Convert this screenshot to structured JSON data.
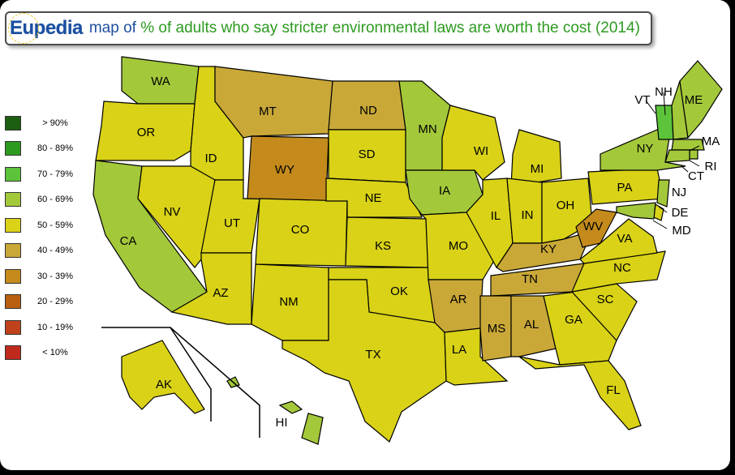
{
  "header": {
    "brand": "Eupedia",
    "title_pre": "map of ",
    "title_em": "% of adults who say stricter environmental laws are worth the cost (2014)"
  },
  "legend": [
    {
      "label": "> 90%",
      "color": "#1c5e10"
    },
    {
      "label": "80 - 89%",
      "color": "#2c9a1f"
    },
    {
      "label": "70 - 79%",
      "color": "#5cc33a"
    },
    {
      "label": "60 - 69%",
      "color": "#a3c83a"
    },
    {
      "label": "50 - 59%",
      "color": "#d9d217"
    },
    {
      "label": "40 - 49%",
      "color": "#c9a838"
    },
    {
      "label": "30 - 39%",
      "color": "#c48b1c"
    },
    {
      "label": "20 - 29%",
      "color": "#b8600f"
    },
    {
      "label": "10 - 19%",
      "color": "#c0421c"
    },
    {
      "label": "< 10%",
      "color": "#c02a1c"
    }
  ],
  "states": [
    {
      "abbr": "WA",
      "bucket": "60 - 69%"
    },
    {
      "abbr": "OR",
      "bucket": "50 - 59%"
    },
    {
      "abbr": "CA",
      "bucket": "60 - 69%"
    },
    {
      "abbr": "ID",
      "bucket": "50 - 59%"
    },
    {
      "abbr": "NV",
      "bucket": "50 - 59%"
    },
    {
      "abbr": "UT",
      "bucket": "50 - 59%"
    },
    {
      "abbr": "AZ",
      "bucket": "50 - 59%"
    },
    {
      "abbr": "MT",
      "bucket": "40 - 49%"
    },
    {
      "abbr": "WY",
      "bucket": "30 - 39%"
    },
    {
      "abbr": "CO",
      "bucket": "50 - 59%"
    },
    {
      "abbr": "NM",
      "bucket": "50 - 59%"
    },
    {
      "abbr": "ND",
      "bucket": "40 - 49%"
    },
    {
      "abbr": "SD",
      "bucket": "50 - 59%"
    },
    {
      "abbr": "NE",
      "bucket": "50 - 59%"
    },
    {
      "abbr": "KS",
      "bucket": "50 - 59%"
    },
    {
      "abbr": "OK",
      "bucket": "50 - 59%"
    },
    {
      "abbr": "TX",
      "bucket": "50 - 59%"
    },
    {
      "abbr": "MN",
      "bucket": "60 - 69%"
    },
    {
      "abbr": "IA",
      "bucket": "60 - 69%"
    },
    {
      "abbr": "MO",
      "bucket": "50 - 59%"
    },
    {
      "abbr": "AR",
      "bucket": "40 - 49%"
    },
    {
      "abbr": "LA",
      "bucket": "50 - 59%"
    },
    {
      "abbr": "WI",
      "bucket": "50 - 59%"
    },
    {
      "abbr": "IL",
      "bucket": "50 - 59%"
    },
    {
      "abbr": "MI",
      "bucket": "50 - 59%"
    },
    {
      "abbr": "IN",
      "bucket": "50 - 59%"
    },
    {
      "abbr": "OH",
      "bucket": "50 - 59%"
    },
    {
      "abbr": "KY",
      "bucket": "40 - 49%"
    },
    {
      "abbr": "TN",
      "bucket": "40 - 49%"
    },
    {
      "abbr": "MS",
      "bucket": "40 - 49%"
    },
    {
      "abbr": "AL",
      "bucket": "40 - 49%"
    },
    {
      "abbr": "GA",
      "bucket": "50 - 59%"
    },
    {
      "abbr": "FL",
      "bucket": "50 - 59%"
    },
    {
      "abbr": "SC",
      "bucket": "50 - 59%"
    },
    {
      "abbr": "NC",
      "bucket": "50 - 59%"
    },
    {
      "abbr": "VA",
      "bucket": "50 - 59%"
    },
    {
      "abbr": "WV",
      "bucket": "30 - 39%"
    },
    {
      "abbr": "PA",
      "bucket": "50 - 59%"
    },
    {
      "abbr": "NY",
      "bucket": "60 - 69%"
    },
    {
      "abbr": "VT",
      "bucket": "70 - 79%"
    },
    {
      "abbr": "NH",
      "bucket": "60 - 69%"
    },
    {
      "abbr": "ME",
      "bucket": "60 - 69%"
    },
    {
      "abbr": "MA",
      "bucket": "60 - 69%"
    },
    {
      "abbr": "RI",
      "bucket": "60 - 69%"
    },
    {
      "abbr": "CT",
      "bucket": "60 - 69%"
    },
    {
      "abbr": "NJ",
      "bucket": "60 - 69%"
    },
    {
      "abbr": "DE",
      "bucket": "50 - 59%"
    },
    {
      "abbr": "MD",
      "bucket": "60 - 69%"
    },
    {
      "abbr": "AK",
      "bucket": "50 - 59%"
    },
    {
      "abbr": "HI",
      "bucket": "60 - 69%"
    }
  ]
}
